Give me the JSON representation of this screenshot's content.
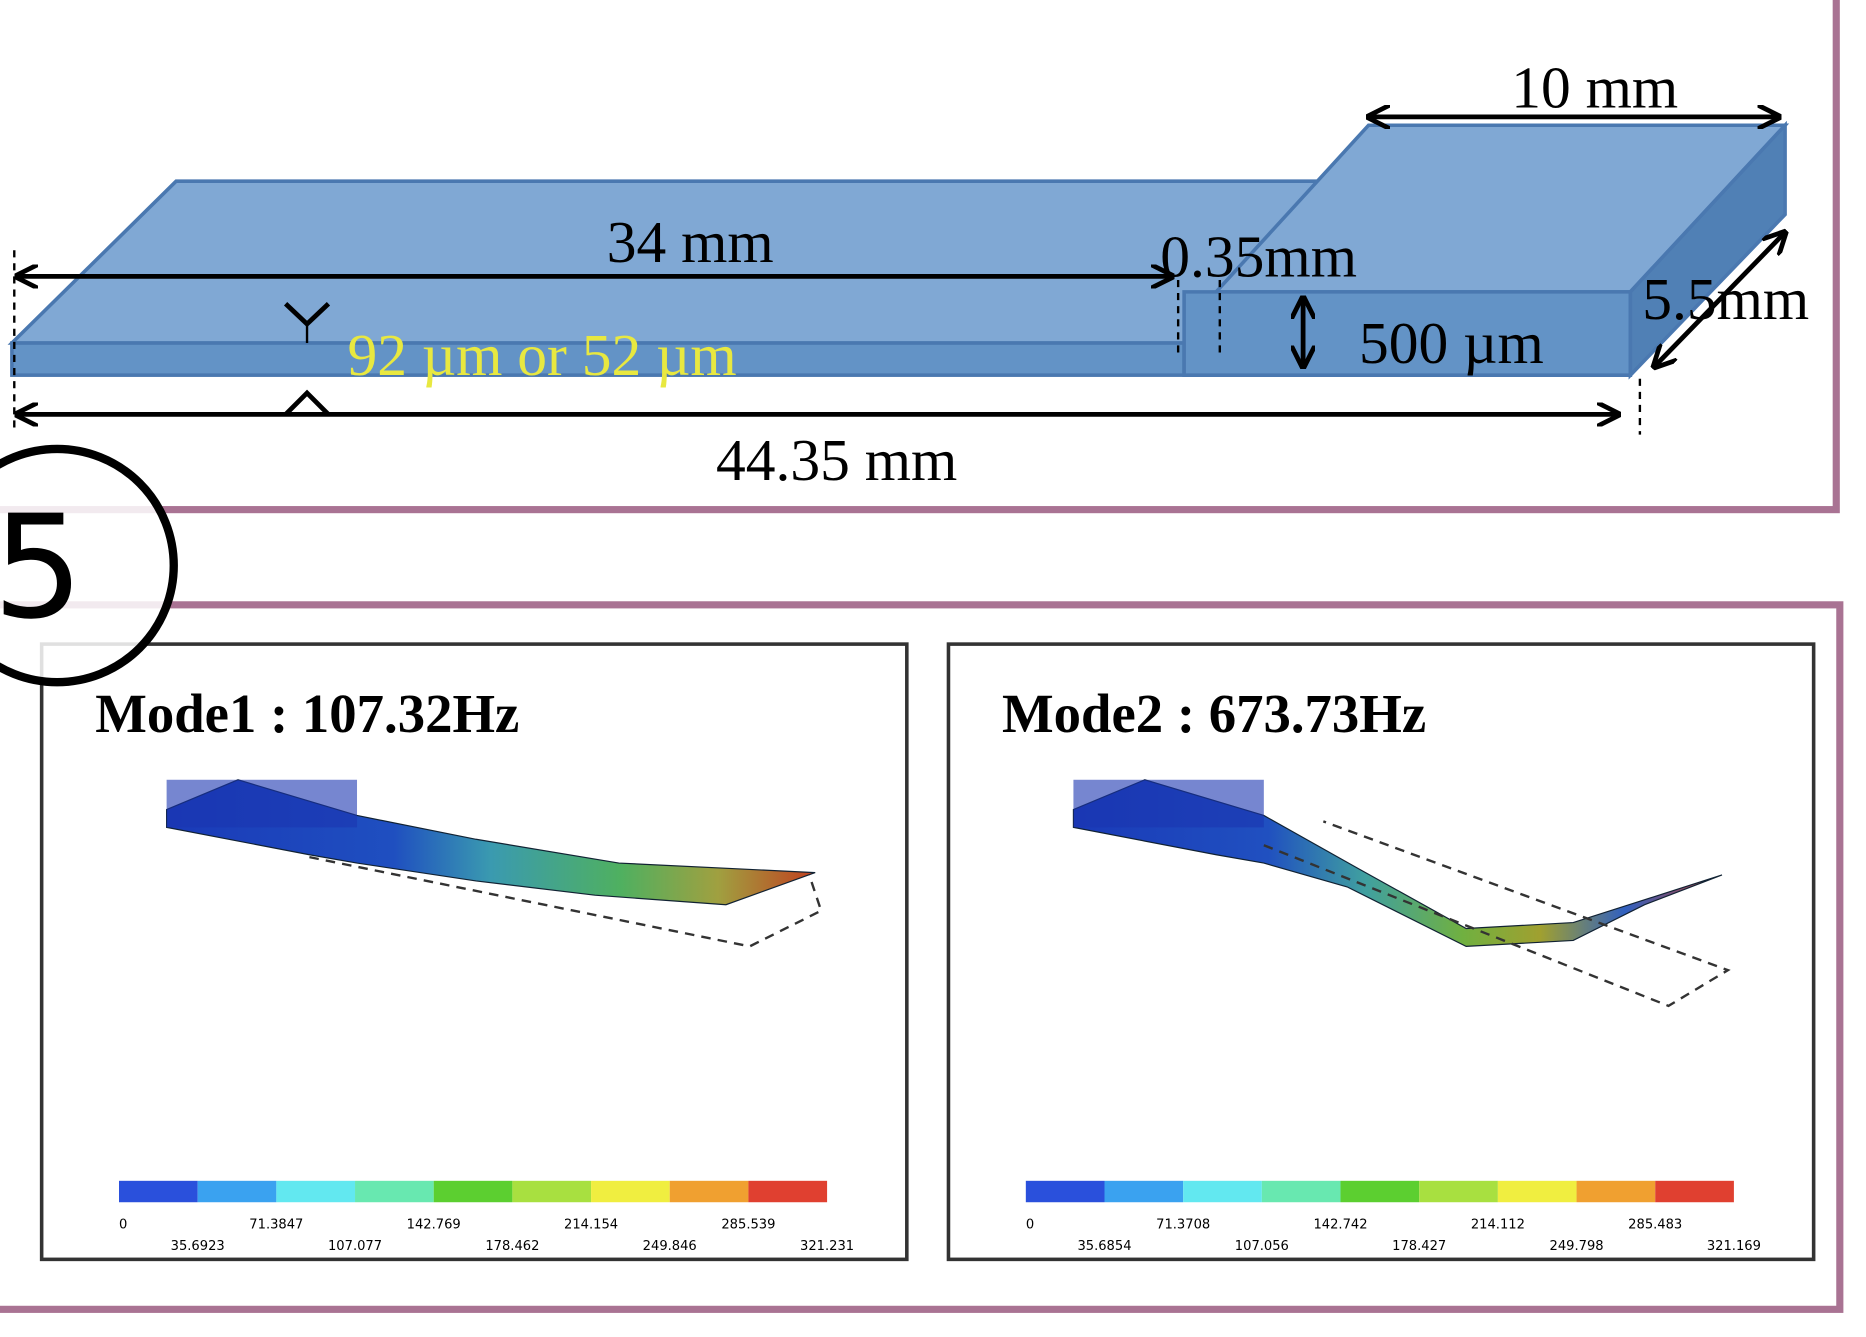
{
  "badge": "5",
  "geometry": {
    "plate_length": "34 mm",
    "gap": "0.35mm",
    "block_length": "10 mm",
    "block_width": "5.5mm",
    "block_thickness": "500 µm",
    "plate_thickness": "92 µm  or 52 µm",
    "total_length": "44.35 mm"
  },
  "modes": [
    {
      "title": "Mode1 : 107.32Hz",
      "scale_top": [
        "0",
        "71.3847",
        "142.769",
        "214.154",
        "285.539"
      ],
      "scale_bottom": [
        "35.6923",
        "107.077",
        "178.462",
        "249.846",
        "321.231"
      ]
    },
    {
      "title": "Mode2 : 673.73Hz",
      "scale_top": [
        "0",
        "71.3708",
        "142.742",
        "214.112",
        "285.483"
      ],
      "scale_bottom": [
        "35.6854",
        "107.056",
        "178.427",
        "249.798",
        "321.169"
      ]
    }
  ]
}
